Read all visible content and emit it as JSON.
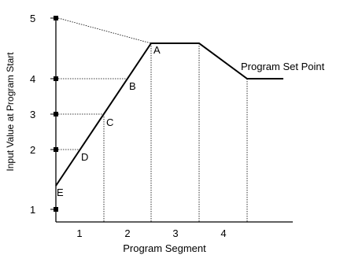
{
  "diagram": {
    "x_axis_label": "Program Segment",
    "y_axis_label": "Input Value at Program Start",
    "set_point_label": "Program Set Point",
    "y_ticks": [
      "1",
      "2",
      "3",
      "4",
      "5"
    ],
    "segments": [
      "1",
      "2",
      "3",
      "4"
    ],
    "points": [
      "A",
      "B",
      "C",
      "D",
      "E"
    ]
  }
}
